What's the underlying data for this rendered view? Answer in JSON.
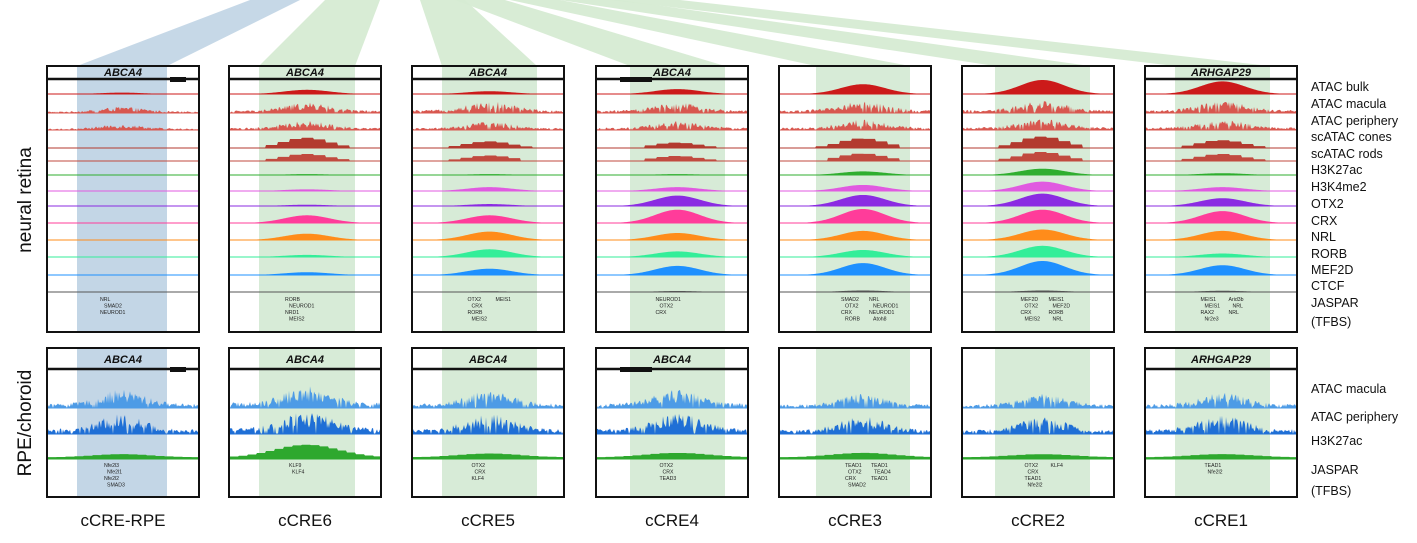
{
  "chart_data": {
    "type": "genome_browser_tracks",
    "title": "",
    "sections": [
      {
        "id": "neural",
        "label": "neural retina",
        "tracks": [
          "ATAC bulk",
          "ATAC macula",
          "ATAC periphery",
          "scATAC cones",
          "scATAC rods",
          "H3K27ac",
          "H3K4me2",
          "OTX2",
          "CRX",
          "NRL",
          "RORB",
          "MEF2D",
          "CTCF",
          "JASPAR",
          "(TFBS)"
        ]
      },
      {
        "id": "rpe",
        "label": "RPE/choroid",
        "tracks": [
          "ATAC macula",
          "ATAC periphery",
          "H3K27ac",
          "JASPAR",
          "(TFBS)"
        ]
      }
    ],
    "panels": [
      {
        "name": "cCRE-RPE",
        "gene": "ABCA4",
        "highlight": "blue",
        "tfbs_neural": [
          "NRL",
          "SMAD2",
          "NEUROD1"
        ],
        "tfbs_rpe": [
          "Nfe2l3",
          "Nfe2l1",
          "Nfe2l2",
          "SMAD3"
        ]
      },
      {
        "name": "cCRE6",
        "gene": "ABCA4",
        "highlight": "green",
        "tfbs_neural": [
          "RORB",
          "NEUROD1",
          "NRD1",
          "MEIS2"
        ],
        "tfbs_rpe": [
          "KLF9",
          "KLF4"
        ]
      },
      {
        "name": "cCRE5",
        "gene": "ABCA4",
        "highlight": "green",
        "tfbs_neural": [
          "OTX2",
          "CRX",
          "RORB",
          "MEIS2",
          "MEIS1"
        ],
        "tfbs_rpe": [
          "OTX2",
          "CRX",
          "KLF4"
        ]
      },
      {
        "name": "cCRE4",
        "gene": "ABCA4",
        "highlight": "green",
        "tfbs_neural": [
          "NEUROD1",
          "OTX2",
          "CRX"
        ],
        "tfbs_rpe": [
          "OTX2",
          "CRX",
          "TEAD3"
        ]
      },
      {
        "name": "cCRE3",
        "gene": "",
        "highlight": "green",
        "tfbs_neural": [
          "SMAD2",
          "OTX2",
          "CRX",
          "RORB",
          "NRL",
          "NEUROD1",
          "NEUROD1",
          "Atoh8"
        ],
        "tfbs_rpe": [
          "TEAD1",
          "OTX2",
          "CRX",
          "SMAD2",
          "TEAD1",
          "TEAD4",
          "TEAD1"
        ]
      },
      {
        "name": "cCRE2",
        "gene": "",
        "highlight": "green",
        "tfbs_neural": [
          "MEF2D",
          "OTX2",
          "CRX",
          "MEIS2",
          "MEIS1",
          "MEF2D",
          "RORB",
          "NRL"
        ],
        "tfbs_rpe": [
          "OTX2",
          "CRX",
          "TEAD1",
          "Nfe2l2",
          "KLF4"
        ]
      },
      {
        "name": "cCRE1",
        "gene": "ARHGAP29",
        "highlight": "green",
        "tfbs_neural": [
          "MEIS1",
          "MEIS1",
          "RAX2",
          "Nr2e3",
          "Arid3b",
          "NRL",
          "NRL"
        ],
        "tfbs_rpe": [
          "TEAD1",
          "Nfe2l2"
        ]
      }
    ],
    "series_colors": {
      "ATAC bulk": "#cc1a1a",
      "ATAC macula": "#d8574f",
      "ATAC periphery": "#d8574f",
      "scATAC cones": "#b33a2f",
      "scATAC rods": "#c14a3f",
      "H3K27ac": "#2fae2f",
      "H3K4me2": "#e05ae0",
      "OTX2": "#8b2be2",
      "CRX": "#ff3c9a",
      "NRL": "#ff8c1a",
      "RORB": "#33ee99",
      "MEF2D": "#1e90ff",
      "CTCF": "#555555",
      "RPE ATAC macula": "#4d9be6",
      "RPE ATAC periphery": "#1f6fd6",
      "RPE H3K27ac": "#2ea82e"
    },
    "highlight_colors": {
      "blue": "#c3d6e6",
      "green": "#d7ebd7"
    }
  }
}
